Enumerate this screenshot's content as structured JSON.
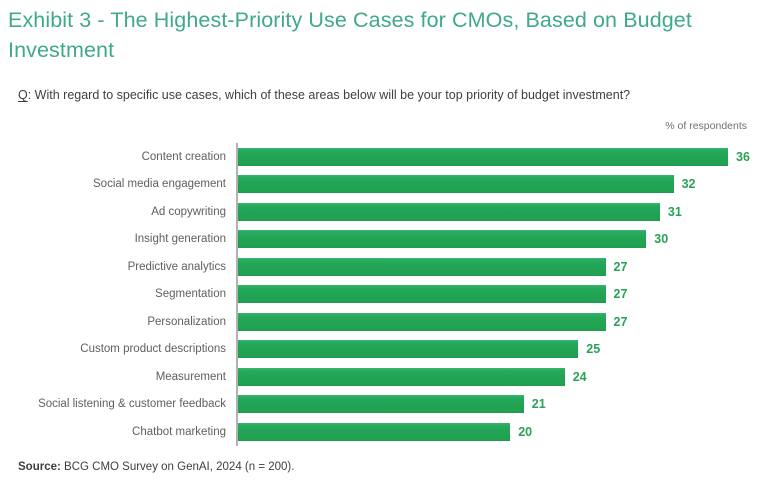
{
  "header": {
    "exhibit_title": "Exhibit 3 - The Highest-Priority Use Cases for CMOs, Based on Budget Investment",
    "question_prefix": "Q",
    "question_rest": ": With regard to specific use cases, which of these areas below will be your top priority of budget investment?"
  },
  "axis_note": "% of respondents",
  "footer": {
    "source_label": "Source:",
    "source_text": " BCG CMO Survey on GenAI, 2024 (n = 200)."
  },
  "colors": {
    "title_teal": "#3FA98C",
    "bar_green": "#22A455",
    "value_label_green": "#2AA156",
    "category_label_gray": "#5F5F5F",
    "axis_line_gray": "#B2B2B2",
    "body_text": "#3F3F3F"
  },
  "chart_data": {
    "type": "bar",
    "orientation": "horizontal",
    "title": "Exhibit 3 - The Highest-Priority Use Cases for CMOs, Based on Budget Investment",
    "xlabel": "% of respondents",
    "ylabel": "",
    "categories": [
      "Content creation",
      "Social media engagement",
      "Ad copywriting",
      "Insight generation",
      "Predictive analytics",
      "Segmentation",
      "Personalization",
      "Custom product descriptions",
      "Measurement",
      "Social listening & customer feedback",
      "Chatbot marketing"
    ],
    "values": [
      36,
      32,
      31,
      30,
      27,
      27,
      27,
      25,
      24,
      21,
      20
    ],
    "xlim": [
      0,
      36
    ],
    "grid": false,
    "value_labels_shown": true,
    "legend": "none"
  }
}
